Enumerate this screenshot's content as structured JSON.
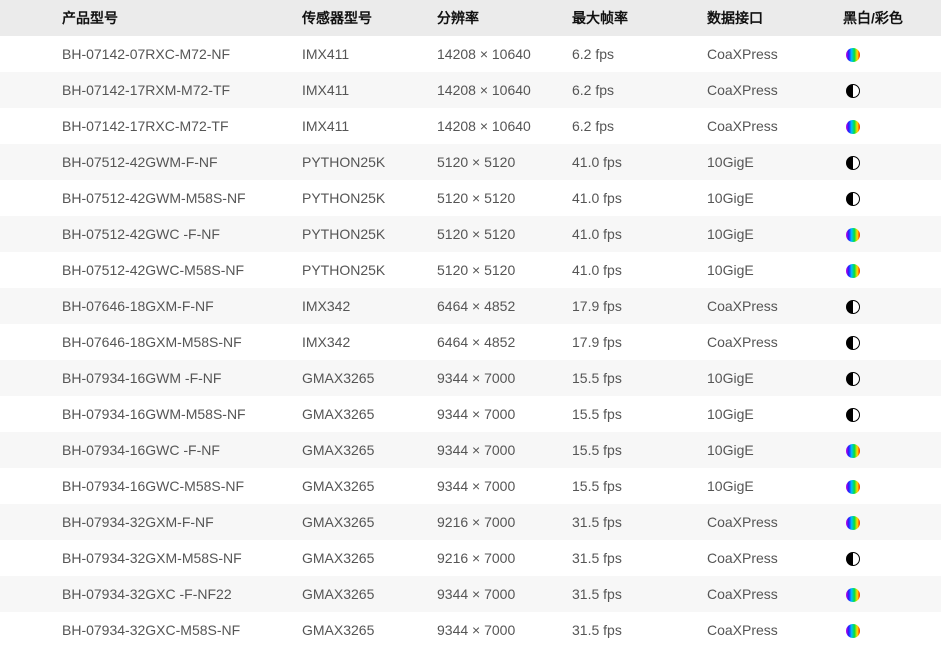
{
  "headers": [
    "产品型号",
    "传感器型号",
    "分辨率",
    "最大帧率",
    "数据接口",
    "黑白/彩色"
  ],
  "rows": [
    {
      "model": "BH-07142-07RXC-M72-NF",
      "sensor": "IMX411",
      "resolution": "14208 × 10640",
      "fps": "6.2 fps",
      "interface": "CoaXPress",
      "type": "color"
    },
    {
      "model": "BH-07142-17RXM-M72-TF",
      "sensor": "IMX411",
      "resolution": "14208 × 10640",
      "fps": "6.2 fps",
      "interface": "CoaXPress",
      "type": "mono"
    },
    {
      "model": "BH-07142-17RXC-M72-TF",
      "sensor": "IMX411",
      "resolution": "14208 × 10640",
      "fps": "6.2 fps",
      "interface": "CoaXPress",
      "type": "color"
    },
    {
      "model": "BH-07512-42GWM-F-NF",
      "sensor": "PYTHON25K",
      "resolution": "5120 × 5120",
      "fps": "41.0 fps",
      "interface": "10GigE",
      "type": "mono"
    },
    {
      "model": "BH-07512-42GWM-M58S-NF",
      "sensor": "PYTHON25K",
      "resolution": "5120 × 5120",
      "fps": "41.0 fps",
      "interface": "10GigE",
      "type": "mono"
    },
    {
      "model": "BH-07512-42GWC -F-NF",
      "sensor": "PYTHON25K",
      "resolution": "5120 × 5120",
      "fps": "41.0 fps",
      "interface": "10GigE",
      "type": "color"
    },
    {
      "model": "BH-07512-42GWC-M58S-NF",
      "sensor": "PYTHON25K",
      "resolution": "5120 × 5120",
      "fps": "41.0 fps",
      "interface": "10GigE",
      "type": "color"
    },
    {
      "model": "BH-07646-18GXM-F-NF",
      "sensor": "IMX342",
      "resolution": "6464 × 4852",
      "fps": "17.9 fps",
      "interface": "CoaXPress",
      "type": "mono"
    },
    {
      "model": "BH-07646-18GXM-M58S-NF",
      "sensor": "IMX342",
      "resolution": "6464 × 4852",
      "fps": "17.9 fps",
      "interface": "CoaXPress",
      "type": "mono"
    },
    {
      "model": "BH-07934-16GWM -F-NF",
      "sensor": "GMAX3265",
      "resolution": "9344 × 7000",
      "fps": "15.5 fps",
      "interface": "10GigE",
      "type": "mono"
    },
    {
      "model": "BH-07934-16GWM-M58S-NF",
      "sensor": "GMAX3265",
      "resolution": "9344 × 7000",
      "fps": "15.5 fps",
      "interface": "10GigE",
      "type": "mono"
    },
    {
      "model": "BH-07934-16GWC -F-NF",
      "sensor": "GMAX3265",
      "resolution": "9344 × 7000",
      "fps": "15.5 fps",
      "interface": "10GigE",
      "type": "color"
    },
    {
      "model": "BH-07934-16GWC-M58S-NF",
      "sensor": "GMAX3265",
      "resolution": "9344 × 7000",
      "fps": "15.5 fps",
      "interface": "10GigE",
      "type": "color"
    },
    {
      "model": "BH-07934-32GXM-F-NF",
      "sensor": "GMAX3265",
      "resolution": "9216 × 7000",
      "fps": "31.5 fps",
      "interface": "CoaXPress",
      "type": "color"
    },
    {
      "model": "BH-07934-32GXM-M58S-NF",
      "sensor": "GMAX3265",
      "resolution": "9216 × 7000",
      "fps": "31.5 fps",
      "interface": "CoaXPress",
      "type": "mono"
    },
    {
      "model": "BH-07934-32GXC -F-NF22",
      "sensor": "GMAX3265",
      "resolution": "9344 × 7000",
      "fps": "31.5 fps",
      "interface": "CoaXPress",
      "type": "color"
    },
    {
      "model": "BH-07934-32GXC-M58S-NF",
      "sensor": "GMAX3265",
      "resolution": "9344 × 7000",
      "fps": "31.5 fps",
      "interface": "CoaXPress",
      "type": "color"
    }
  ]
}
